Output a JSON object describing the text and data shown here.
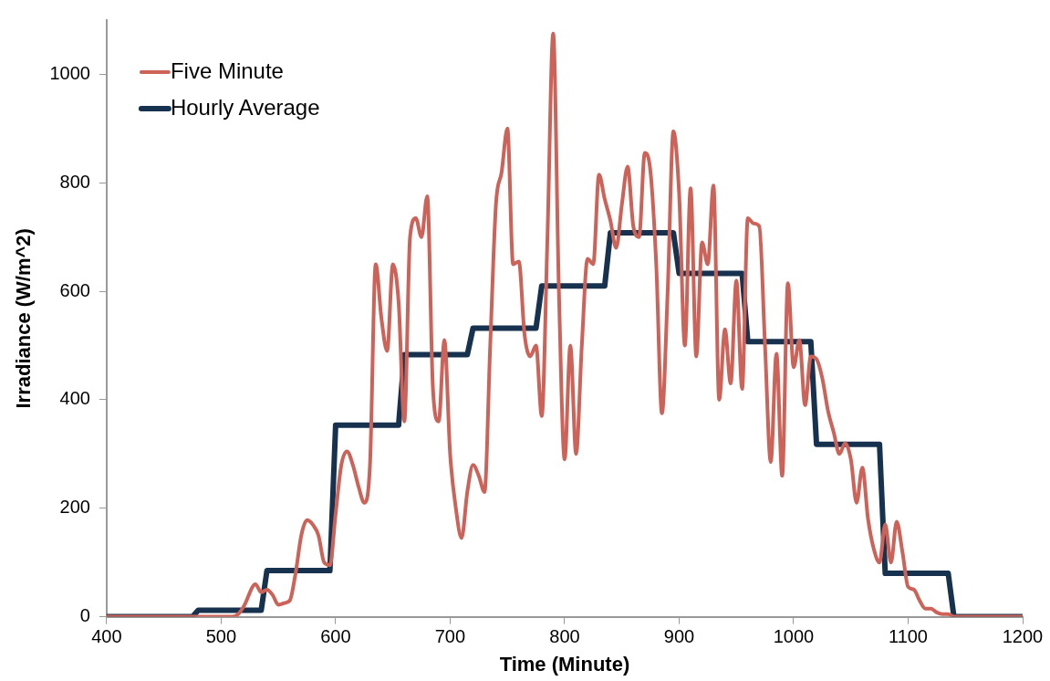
{
  "chart_data": {
    "type": "line",
    "xlabel": "Time (Minute)",
    "ylabel": "Irradiance (W/m^2)",
    "xlim": [
      400,
      1200
    ],
    "xticks": [
      400,
      500,
      600,
      700,
      800,
      900,
      1000,
      1100,
      1200
    ],
    "ylim": [
      0,
      1100
    ],
    "yticks": [
      0,
      200,
      400,
      600,
      800,
      1000
    ],
    "grid": false,
    "legend": "top left",
    "marker": "none",
    "line_style": "solid",
    "series": [
      {
        "name": "Five Minute",
        "color": "#cd6259",
        "x": [
          400,
          500,
          510,
          515,
          520,
          530,
          535,
          540,
          545,
          550,
          555,
          560,
          565,
          570,
          575,
          580,
          585,
          590,
          595,
          600,
          605,
          610,
          615,
          620,
          625,
          630,
          635,
          640,
          645,
          650,
          655,
          660,
          665,
          670,
          675,
          680,
          685,
          690,
          695,
          700,
          705,
          710,
          715,
          720,
          725,
          730,
          735,
          740,
          745,
          750,
          755,
          760,
          765,
          770,
          775,
          780,
          785,
          790,
          795,
          800,
          805,
          810,
          815,
          820,
          825,
          830,
          835,
          840,
          845,
          850,
          855,
          860,
          865,
          870,
          875,
          880,
          885,
          890,
          895,
          900,
          905,
          910,
          915,
          920,
          925,
          930,
          935,
          940,
          945,
          950,
          955,
          960,
          965,
          970,
          975,
          980,
          985,
          990,
          995,
          1000,
          1005,
          1010,
          1015,
          1020,
          1025,
          1030,
          1035,
          1040,
          1045,
          1050,
          1055,
          1060,
          1065,
          1070,
          1075,
          1080,
          1085,
          1090,
          1095,
          1100,
          1105,
          1110,
          1115,
          1120,
          1125,
          1130,
          1135,
          1140,
          1200
        ],
        "values": [
          0,
          0,
          0,
          5,
          20,
          60,
          45,
          50,
          40,
          22,
          25,
          30,
          80,
          150,
          178,
          170,
          150,
          100,
          95,
          190,
          280,
          305,
          280,
          240,
          210,
          280,
          650,
          550,
          490,
          650,
          580,
          360,
          700,
          735,
          700,
          775,
          420,
          360,
          510,
          300,
          200,
          145,
          230,
          280,
          260,
          230,
          500,
          760,
          820,
          900,
          650,
          655,
          520,
          480,
          500,
          370,
          700,
          1075,
          600,
          290,
          500,
          300,
          500,
          660,
          650,
          815,
          770,
          730,
          680,
          760,
          830,
          720,
          700,
          855,
          820,
          650,
          375,
          600,
          895,
          780,
          500,
          790,
          480,
          690,
          650,
          795,
          400,
          530,
          430,
          620,
          420,
          735,
          725,
          720,
          500,
          285,
          485,
          260,
          615,
          460,
          510,
          390,
          480,
          475,
          440,
          380,
          340,
          300,
          320,
          290,
          210,
          275,
          180,
          125,
          100,
          170,
          100,
          175,
          120,
          55,
          50,
          30,
          15,
          15,
          8,
          5,
          5,
          0,
          0
        ]
      },
      {
        "name": "Hourly Average",
        "color": "#16324f",
        "x": [
          400,
          475,
          480,
          535,
          540,
          595,
          600,
          655,
          660,
          715,
          720,
          775,
          780,
          835,
          840,
          895,
          900,
          955,
          960,
          1015,
          1020,
          1075,
          1080,
          1135,
          1140,
          1200
        ],
        "values": [
          0,
          0,
          12,
          12,
          85,
          85,
          353,
          353,
          483,
          483,
          532,
          532,
          610,
          610,
          708,
          708,
          633,
          633,
          507,
          507,
          318,
          318,
          80,
          80,
          0,
          0
        ]
      }
    ]
  }
}
